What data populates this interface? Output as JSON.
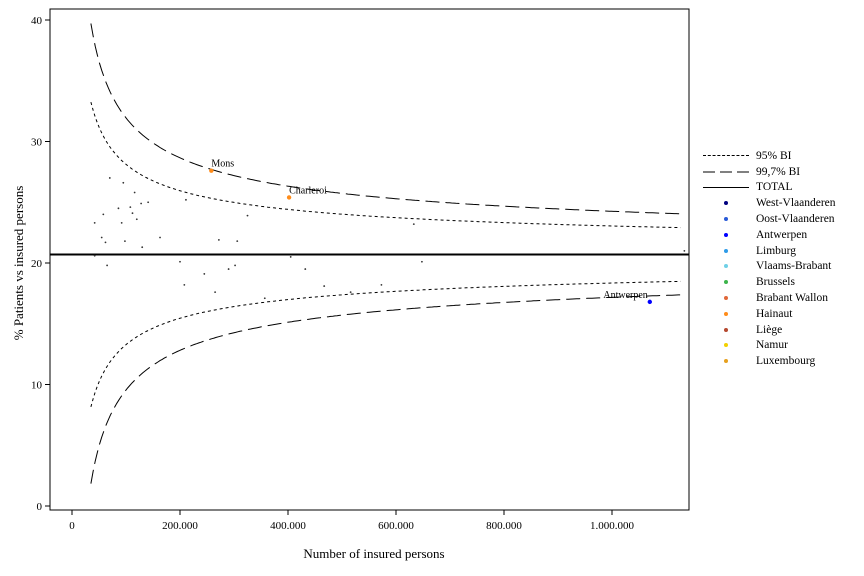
{
  "chart_data": {
    "type": "scatter",
    "xlabel": "Number of insured persons",
    "ylabel": "% Patients vs insured persons",
    "xlim": [
      0,
      1140000
    ],
    "ylim": [
      0,
      40
    ],
    "x_ticks": [
      0,
      200000,
      400000,
      600000,
      800000,
      1000000
    ],
    "x_tick_labels": [
      "0",
      "200.000",
      "400.000",
      "600.000",
      "800.000",
      "1.000.000"
    ],
    "y_ticks": [
      0,
      10,
      20,
      30,
      40
    ],
    "y_tick_labels": [
      "0",
      "10",
      "20",
      "30",
      "40"
    ],
    "total": 20.7,
    "reference_lines": [
      {
        "name": "95% BI",
        "style": "short-dash",
        "curve_x": [
          35000,
          100000,
          200000,
          300000,
          400000,
          500000,
          600000,
          700000,
          800000,
          900000,
          1000000,
          1130000
        ],
        "upper": [
          33.8,
          28.0,
          25.7,
          24.7,
          24.1,
          23.8,
          23.5,
          23.4,
          23.2,
          23.1,
          23.0,
          22.9
        ],
        "lower": [
          7.5,
          13.4,
          15.8,
          16.8,
          17.3,
          17.7,
          17.9,
          18.0,
          18.2,
          18.3,
          18.4,
          18.5
        ]
      },
      {
        "name": "99,7% BI",
        "style": "long-dash",
        "curve_x": [
          35000,
          100000,
          200000,
          300000,
          400000,
          500000,
          600000,
          700000,
          800000,
          900000,
          1000000,
          1130000
        ],
        "upper": [
          40.5,
          31.8,
          28.3,
          26.8,
          25.9,
          25.4,
          25.0,
          24.7,
          24.5,
          24.3,
          24.2,
          24.0
        ],
        "lower": [
          1.0,
          9.6,
          13.2,
          14.7,
          15.6,
          16.1,
          16.5,
          16.8,
          17.0,
          17.1,
          17.3,
          17.4
        ]
      }
    ],
    "legend_total": "TOTAL",
    "regions": [
      {
        "name": "West-Vlaanderen",
        "color": "#00007f"
      },
      {
        "name": "Oost-Vlaanderen",
        "color": "#2a5bd7"
      },
      {
        "name": "Antwerpen",
        "color": "#0000ff"
      },
      {
        "name": "Limburg",
        "color": "#2e9be8"
      },
      {
        "name": "Vlaams-Brabant",
        "color": "#6fd0e6"
      },
      {
        "name": "Brussels",
        "color": "#3cb44b"
      },
      {
        "name": "Brabant Wallon",
        "color": "#e0683a"
      },
      {
        "name": "Hainaut",
        "color": "#ff8c1a"
      },
      {
        "name": "Liège",
        "color": "#b5482f"
      },
      {
        "name": "Namur",
        "color": "#f2d000"
      },
      {
        "name": "Luxembourg",
        "color": "#e6a01e"
      }
    ],
    "highlighted": [
      {
        "label": "Mons",
        "x": 258000,
        "y": 27.6,
        "color": "#ff8c1a"
      },
      {
        "label": "Charleroi",
        "x": 402000,
        "y": 25.4,
        "color": "#ff8c1a"
      },
      {
        "label": "Antwerpen",
        "x": 1070000,
        "y": 16.8,
        "color": "#0000ff"
      }
    ],
    "points": [
      {
        "x": 42000,
        "y": 23.3
      },
      {
        "x": 42000,
        "y": 20.6
      },
      {
        "x": 55000,
        "y": 22.1
      },
      {
        "x": 58000,
        "y": 24.0
      },
      {
        "x": 62000,
        "y": 21.7
      },
      {
        "x": 65000,
        "y": 19.8
      },
      {
        "x": 70000,
        "y": 27.0
      },
      {
        "x": 86000,
        "y": 24.5
      },
      {
        "x": 92000,
        "y": 23.3
      },
      {
        "x": 95000,
        "y": 26.6
      },
      {
        "x": 98000,
        "y": 21.8
      },
      {
        "x": 108000,
        "y": 24.6
      },
      {
        "x": 112000,
        "y": 24.1
      },
      {
        "x": 116000,
        "y": 25.8
      },
      {
        "x": 120000,
        "y": 23.6
      },
      {
        "x": 128000,
        "y": 24.9
      },
      {
        "x": 130000,
        "y": 21.3
      },
      {
        "x": 141000,
        "y": 25.0
      },
      {
        "x": 163000,
        "y": 22.1
      },
      {
        "x": 200000,
        "y": 20.1
      },
      {
        "x": 208000,
        "y": 18.2
      },
      {
        "x": 211000,
        "y": 25.2
      },
      {
        "x": 245000,
        "y": 19.1
      },
      {
        "x": 265000,
        "y": 17.6
      },
      {
        "x": 272000,
        "y": 21.9
      },
      {
        "x": 290000,
        "y": 19.5
      },
      {
        "x": 302000,
        "y": 19.8
      },
      {
        "x": 306000,
        "y": 21.8
      },
      {
        "x": 325000,
        "y": 23.9
      },
      {
        "x": 357000,
        "y": 17.1
      },
      {
        "x": 405000,
        "y": 20.5
      },
      {
        "x": 432000,
        "y": 19.5
      },
      {
        "x": 467000,
        "y": 18.1
      },
      {
        "x": 516000,
        "y": 17.6
      },
      {
        "x": 573000,
        "y": 18.2
      },
      {
        "x": 633000,
        "y": 23.2
      },
      {
        "x": 648000,
        "y": 20.1
      },
      {
        "x": 1134000,
        "y": 21.0
      }
    ]
  }
}
